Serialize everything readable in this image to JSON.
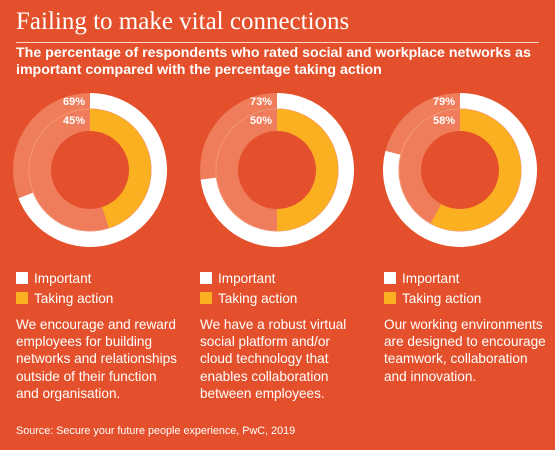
{
  "title": "Failing to make vital connections",
  "subtitle": "The percentage of respondents who rated social and workplace networks as important compared with the percentage taking action",
  "source": "Source: Secure your future people experience, PwC, 2019",
  "colors": {
    "background": "#e4502b",
    "important": "#ffffff",
    "taking_action": "#fbb021",
    "track": "#ef7c5a",
    "track_outline": "#f29677"
  },
  "legend": {
    "important": "Important",
    "taking_action": "Taking action"
  },
  "chart_data": [
    {
      "type": "pie",
      "categories": [
        "Important",
        "Taking action"
      ],
      "values": [
        69,
        45
      ],
      "labels": [
        "69%",
        "45%"
      ],
      "description": "We encourage and reward employees for building networks and relationships outside of their function and organisation."
    },
    {
      "type": "pie",
      "categories": [
        "Important",
        "Taking action"
      ],
      "values": [
        73,
        50
      ],
      "labels": [
        "73%",
        "50%"
      ],
      "description": "We have a robust virtual social platform and/or cloud technology that enables collaboration between employees."
    },
    {
      "type": "pie",
      "categories": [
        "Important",
        "Taking action"
      ],
      "values": [
        79,
        58
      ],
      "labels": [
        "79%",
        "58%"
      ],
      "description": "Our working environments are designed to encourage teamwork, collaboration and innovation."
    }
  ]
}
